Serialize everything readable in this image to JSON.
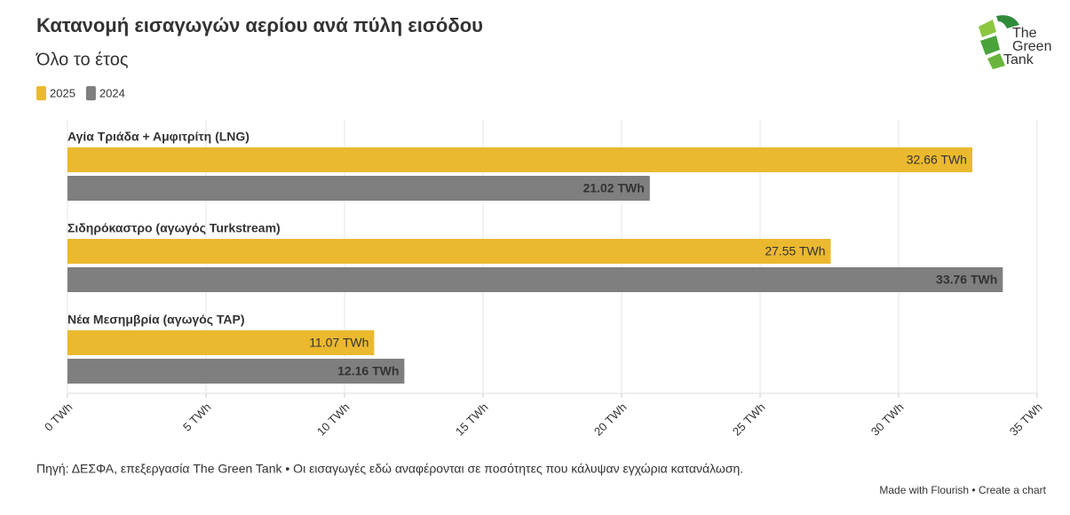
{
  "chart_data": {
    "type": "bar",
    "orientation": "horizontal",
    "title": "Κατανομή εισαγωγών αερίου ανά πύλη εισόδου",
    "subtitle": "Όλο το έτος",
    "categories": [
      "Αγία Τριάδα + Αμφιτρίτη (LNG)",
      "Σιδηρόκαστρο (αγωγός Turkstream)",
      "Νέα Μεσημβρία (αγωγός TAP)"
    ],
    "series": [
      {
        "name": "2025",
        "color": "#ebb92f",
        "values": [
          32.66,
          27.55,
          11.07
        ],
        "value_labels": [
          "32.66 TWh",
          "27.55 TWh",
          "11.07 TWh"
        ]
      },
      {
        "name": "2024",
        "color": "#7f7f7f",
        "values": [
          21.02,
          33.76,
          12.16
        ],
        "value_labels": [
          "21.02 TWh",
          "33.76 TWh",
          "12.16 TWh"
        ]
      }
    ],
    "xlim": [
      0,
      35
    ],
    "xticks": [
      {
        "value": 0,
        "label": "0 TWh"
      },
      {
        "value": 5,
        "label": "5 TWh"
      },
      {
        "value": 10,
        "label": "10 TWh"
      },
      {
        "value": 15,
        "label": "15 TWh"
      },
      {
        "value": 20,
        "label": "20 TWh"
      },
      {
        "value": 25,
        "label": "25 TWh"
      },
      {
        "value": 30,
        "label": "30 TWh"
      },
      {
        "value": 35,
        "label": "35 TWh"
      }
    ],
    "grid": true,
    "legend_position": "top-left",
    "source": "Πηγή: ΔΕΣΦΑ, επεξεργασία The Green Tank • Οι εισαγωγές εδώ αναφέρονται σε ποσότητες που κάλυψαν εγχώρια κατανάλωση.",
    "credit": "Made with Flourish • Create a chart",
    "logo": [
      "The",
      "Green",
      "Tank"
    ]
  }
}
